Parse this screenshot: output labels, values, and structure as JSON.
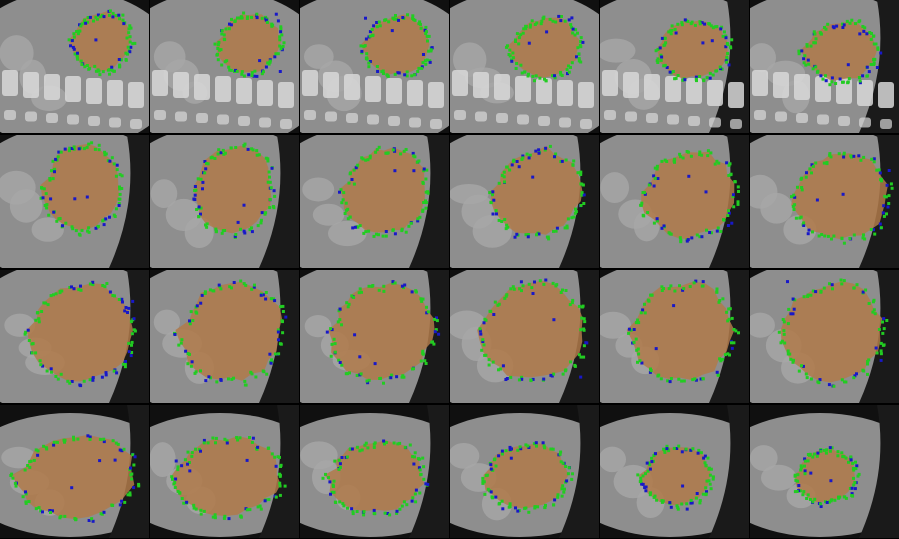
{
  "montage": {
    "rows": 4,
    "cols": 6,
    "colors": {
      "background_dark": "#101010",
      "tissue": "#8e8e8e",
      "tissue_light": "#a8a8a8",
      "bone": "#d8d8d8",
      "lung": "#1a1a1a",
      "liver_overlay": "#b07a4a",
      "contour_agree": "#22cc22",
      "contour_disagree": "#1818c8"
    },
    "tiles": [
      {
        "row": 0,
        "col": 0,
        "view": "sagittal-slice",
        "spine": true,
        "lung": false
      },
      {
        "row": 0,
        "col": 1,
        "view": "sagittal-slice",
        "spine": true,
        "lung": false
      },
      {
        "row": 0,
        "col": 2,
        "view": "sagittal-slice",
        "spine": true,
        "lung": false
      },
      {
        "row": 0,
        "col": 3,
        "view": "sagittal-slice",
        "spine": true,
        "lung": false
      },
      {
        "row": 0,
        "col": 4,
        "view": "sagittal-slice",
        "spine": true,
        "lung": true
      },
      {
        "row": 0,
        "col": 5,
        "view": "sagittal-slice",
        "spine": true,
        "lung": true
      },
      {
        "row": 1,
        "col": 0,
        "view": "sagittal-slice",
        "spine": false,
        "lung": true
      },
      {
        "row": 1,
        "col": 1,
        "view": "sagittal-slice",
        "spine": false,
        "lung": true
      },
      {
        "row": 1,
        "col": 2,
        "view": "sagittal-slice",
        "spine": false,
        "lung": true
      },
      {
        "row": 1,
        "col": 3,
        "view": "sagittal-slice",
        "spine": false,
        "lung": true
      },
      {
        "row": 1,
        "col": 4,
        "view": "sagittal-slice",
        "spine": false,
        "lung": true
      },
      {
        "row": 1,
        "col": 5,
        "view": "sagittal-slice",
        "spine": false,
        "lung": true
      },
      {
        "row": 2,
        "col": 0,
        "view": "sagittal-slice",
        "spine": false,
        "lung": true
      },
      {
        "row": 2,
        "col": 1,
        "view": "sagittal-slice",
        "spine": false,
        "lung": true
      },
      {
        "row": 2,
        "col": 2,
        "view": "sagittal-slice",
        "spine": false,
        "lung": true
      },
      {
        "row": 2,
        "col": 3,
        "view": "sagittal-slice",
        "spine": false,
        "lung": true
      },
      {
        "row": 2,
        "col": 4,
        "view": "sagittal-slice",
        "spine": false,
        "lung": true
      },
      {
        "row": 2,
        "col": 5,
        "view": "sagittal-slice",
        "spine": false,
        "lung": true
      },
      {
        "row": 3,
        "col": 0,
        "view": "sagittal-slice",
        "spine": false,
        "lung": true
      },
      {
        "row": 3,
        "col": 1,
        "view": "sagittal-slice",
        "spine": false,
        "lung": true
      },
      {
        "row": 3,
        "col": 2,
        "view": "sagittal-slice",
        "spine": false,
        "lung": true
      },
      {
        "row": 3,
        "col": 3,
        "view": "sagittal-slice",
        "spine": false,
        "lung": true
      },
      {
        "row": 3,
        "col": 4,
        "view": "sagittal-slice",
        "spine": false,
        "lung": true
      },
      {
        "row": 3,
        "col": 5,
        "view": "sagittal-slice",
        "spine": false,
        "lung": true
      }
    ]
  }
}
